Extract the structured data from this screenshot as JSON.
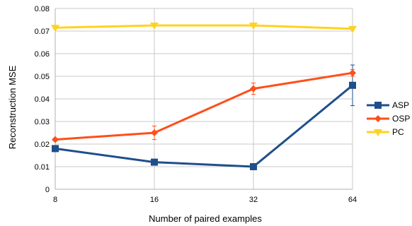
{
  "chart_data": {
    "type": "line",
    "xlabel": "Number of paired examples",
    "ylabel": "Reconstruction MSE",
    "categories": [
      "8",
      "16",
      "32",
      "64"
    ],
    "ylim": [
      0,
      0.08
    ],
    "yticks": [
      "0",
      "0.01",
      "0.02",
      "0.03",
      "0.04",
      "0.05",
      "0.06",
      "0.07",
      "0.08"
    ],
    "grid": true,
    "legend_position": "right",
    "series": [
      {
        "name": "ASP",
        "color": "#1f4e8c",
        "marker": "square",
        "values": [
          0.018,
          0.012,
          0.01,
          0.046
        ],
        "error": [
          0,
          0,
          0,
          0.009
        ]
      },
      {
        "name": "OSP",
        "color": "#ff4f1a",
        "marker": "diamond",
        "values": [
          0.022,
          0.025,
          0.0445,
          0.0515
        ],
        "error": [
          0,
          0.003,
          0.0025,
          0.0015
        ]
      },
      {
        "name": "PC",
        "color": "#ffd21f",
        "marker": "triangle-down",
        "values": [
          0.0715,
          0.0725,
          0.0725,
          0.071
        ],
        "error": [
          0,
          0,
          0,
          0
        ]
      }
    ]
  }
}
